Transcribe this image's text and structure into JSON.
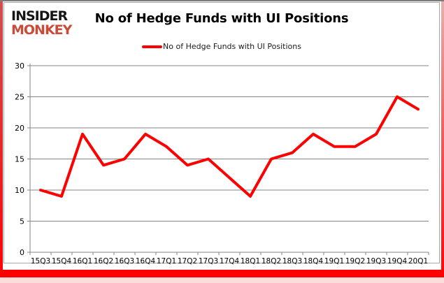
{
  "logo": {
    "line1": "INSIDER",
    "line2": "MONKEY"
  },
  "header": {
    "title": "No of Hedge Funds with UI Positions"
  },
  "legend": {
    "label": "No of Hedge Funds with UI Positions",
    "marker_color": "#fe0000"
  },
  "colors": {
    "line": "#fe0000",
    "grid": "#848484",
    "axis": "#848484",
    "tick_text": "#000000",
    "frame_red": "#fe0000",
    "logo_red": "#cc4a38",
    "logo_black": "#161616"
  },
  "chart_data": {
    "type": "line",
    "title": "No of Hedge Funds with UI Positions",
    "categories": [
      "15Q3",
      "15Q4",
      "16Q1",
      "16Q2",
      "16Q3",
      "16Q4",
      "17Q1",
      "17Q2",
      "17Q3",
      "17Q4",
      "18Q1",
      "18Q2",
      "18Q3",
      "18Q4",
      "19Q1",
      "19Q2",
      "19Q3",
      "19Q4",
      "20Q1"
    ],
    "series": [
      {
        "name": "No of Hedge Funds with UI Positions",
        "color": "#fe0000",
        "values": [
          10,
          9,
          19,
          14,
          15,
          19,
          17,
          14,
          15,
          12,
          9,
          15,
          16,
          19,
          17,
          17,
          19,
          25,
          23
        ]
      }
    ],
    "xlabel": "",
    "ylabel": "",
    "ylim": [
      0,
      30
    ],
    "ytick_interval": 5,
    "yticks": [
      0,
      5,
      10,
      15,
      20,
      25,
      30
    ],
    "grid": "horizontal",
    "legend_position": "top-center"
  }
}
